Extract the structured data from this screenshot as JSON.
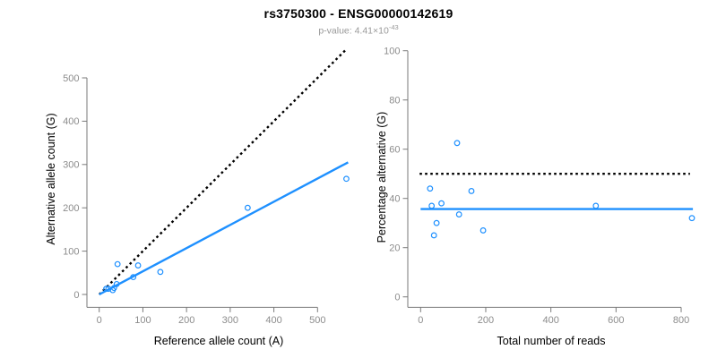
{
  "header": {
    "title": "rs3750300 - ENSG00000142619",
    "pvalue_text": "p-value: 4.41×10",
    "pvalue_exponent": "-43"
  },
  "colors": {
    "accent_blue": "#1E90FF",
    "reference_black": "#000000",
    "axis_line": "#7a7a7a",
    "tick_label": "#8c8c8c",
    "subtitle_gray": "#999999",
    "title_color": "#000000"
  },
  "chart_data": [
    {
      "type": "scatter",
      "panel": "left",
      "xlabel": "Reference allele count (A)",
      "ylabel": "Alternative allele count (G)",
      "xlim": [
        -30,
        580
      ],
      "ylim": [
        -30,
        565
      ],
      "xticks": [
        0,
        100,
        200,
        300,
        400,
        500
      ],
      "yticks": [
        0,
        100,
        200,
        300,
        400,
        500
      ],
      "grid": false,
      "legend": "none",
      "points": [
        [
          16,
          13
        ],
        [
          21,
          13
        ],
        [
          31,
          10
        ],
        [
          34,
          15
        ],
        [
          40,
          24
        ],
        [
          42,
          70
        ],
        [
          78,
          40
        ],
        [
          89,
          67
        ],
        [
          140,
          52
        ],
        [
          340,
          200
        ],
        [
          566,
          267
        ]
      ],
      "lines": [
        {
          "label": "identity",
          "style": "dotted",
          "color": "#000000",
          "x1": 0,
          "y1": 0,
          "x2": 563,
          "y2": 563
        },
        {
          "label": "regression",
          "style": "solid",
          "color": "#1E90FF",
          "x1": 0,
          "y1": 0,
          "x2": 570,
          "y2": 305
        }
      ]
    },
    {
      "type": "scatter",
      "panel": "right",
      "xlabel": "Total number of reads",
      "ylabel": "Percentage alternative (G)",
      "xlim": [
        -39,
        845
      ],
      "ylim": [
        -4.5,
        104
      ],
      "xticks": [
        0,
        200,
        400,
        600,
        800
      ],
      "yticks": [
        0,
        20,
        40,
        60,
        80,
        100
      ],
      "grid": false,
      "legend": "none",
      "points": [
        [
          29,
          44
        ],
        [
          34,
          37
        ],
        [
          41,
          25
        ],
        [
          49,
          30
        ],
        [
          64,
          38
        ],
        [
          112,
          62.5
        ],
        [
          118,
          33.5
        ],
        [
          156,
          43
        ],
        [
          192,
          27
        ],
        [
          538,
          37
        ],
        [
          833,
          32
        ]
      ],
      "lines": [
        {
          "label": "fifty-percent",
          "style": "dotted",
          "color": "#000000",
          "x1": -3,
          "y1": 50,
          "x2": 827,
          "y2": 50
        },
        {
          "label": "mean-percentage",
          "style": "solid",
          "color": "#1E90FF",
          "x1": 0,
          "y1": 35.7,
          "x2": 836,
          "y2": 35.7
        }
      ]
    }
  ]
}
